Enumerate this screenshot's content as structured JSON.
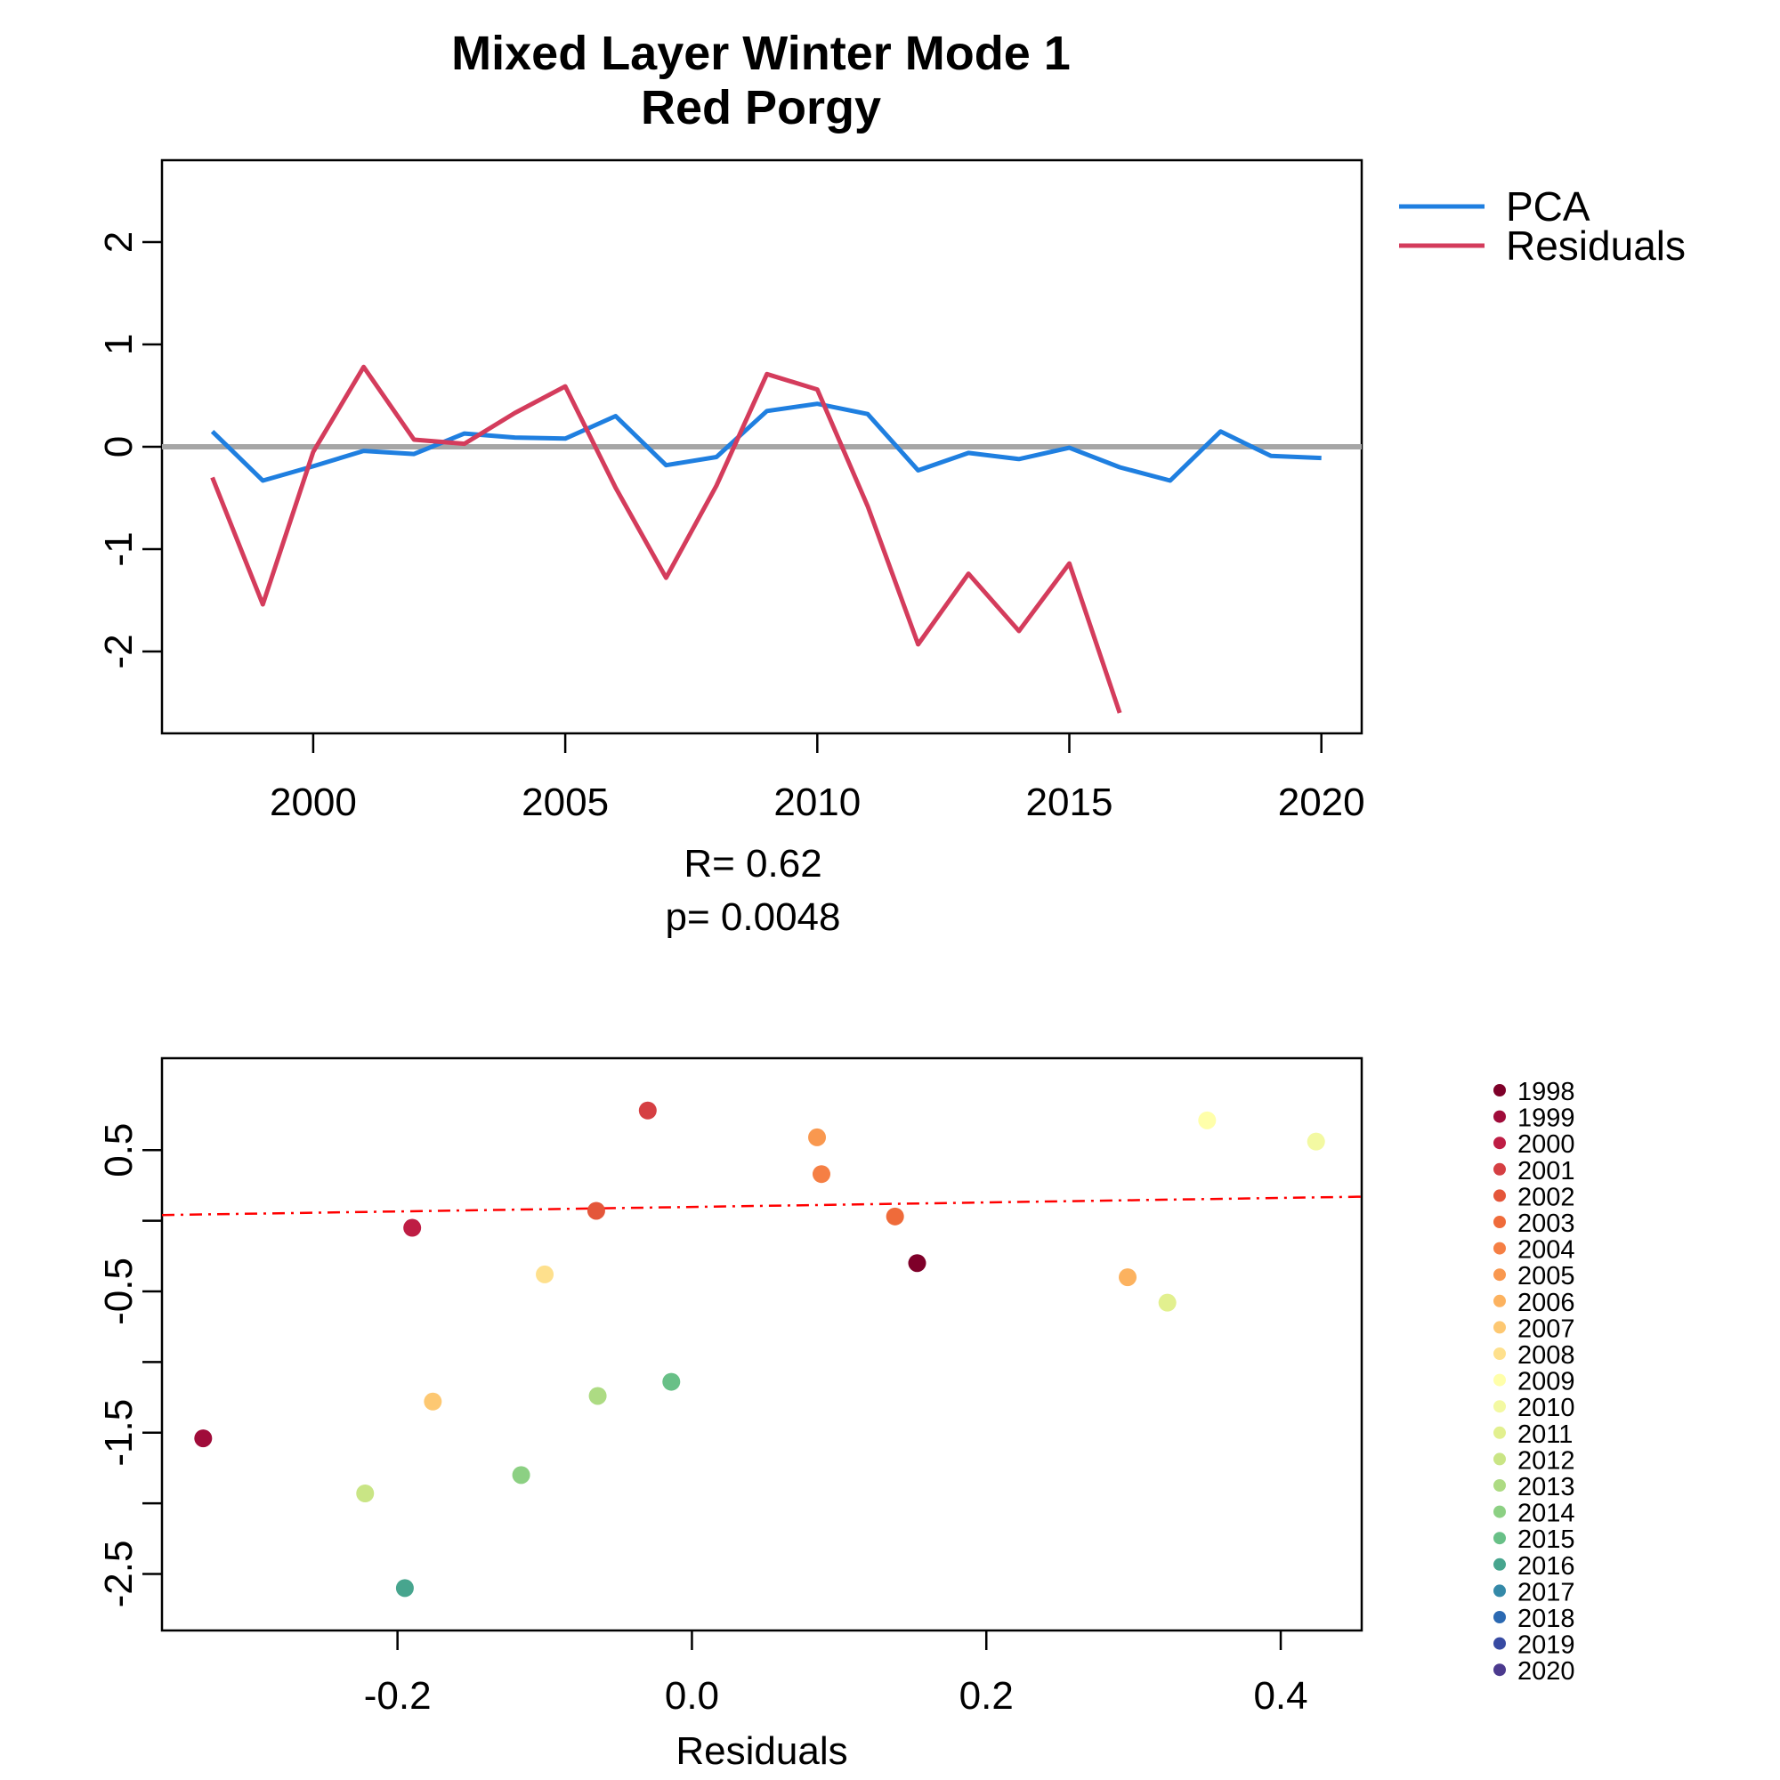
{
  "title_line1": "Mixed Layer Winter Mode 1",
  "title_line2": "Red Porgy",
  "stats": {
    "r_label": "R= 0.62",
    "p_label": "p= 0.0048"
  },
  "colors": {
    "pca": "#1f7fe0",
    "residuals": "#d43c5c",
    "zero_line": "#a6a6a6",
    "fit_line": "#ff0000"
  },
  "chart_data": [
    {
      "type": "line",
      "xlim": [
        1997,
        2020.8
      ],
      "ylim": [
        -2.8,
        2.8
      ],
      "x_ticks": [
        2000,
        2005,
        2010,
        2015,
        2020
      ],
      "x_tick_labels": [
        "2000",
        "2005",
        "2010",
        "2015",
        "2020"
      ],
      "y_ticks": [
        -2,
        -1,
        0,
        1,
        2
      ],
      "y_tick_labels": [
        "-2",
        "-1",
        "0",
        "1",
        "2"
      ],
      "reference_line_y": 0,
      "legend_position": "right-top",
      "series": [
        {
          "name": "PCA",
          "x": [
            1998,
            1999,
            2000,
            2001,
            2002,
            2003,
            2004,
            2005,
            2006,
            2007,
            2008,
            2009,
            2010,
            2011,
            2012,
            2013,
            2014,
            2015,
            2016,
            2017,
            2018,
            2019,
            2020
          ],
          "values": [
            0.15,
            -0.33,
            -0.19,
            -0.04,
            -0.07,
            0.13,
            0.09,
            0.08,
            0.3,
            -0.18,
            -0.1,
            0.35,
            0.42,
            0.32,
            -0.23,
            -0.06,
            -0.12,
            -0.01,
            -0.2,
            -0.33,
            0.15,
            -0.09,
            -0.11
          ]
        },
        {
          "name": "Residuals",
          "x": [
            1998,
            1999,
            2000,
            2001,
            2002,
            2003,
            2004,
            2005,
            2006,
            2007,
            2008,
            2009,
            2010,
            2011,
            2012,
            2013,
            2014,
            2015,
            2016
          ],
          "values": [
            -0.3,
            -1.54,
            -0.05,
            0.78,
            0.07,
            0.03,
            0.33,
            0.59,
            -0.4,
            -1.28,
            -0.38,
            0.71,
            0.56,
            -0.58,
            -1.93,
            -1.24,
            -1.8,
            -1.14,
            -2.6
          ]
        }
      ]
    },
    {
      "type": "scatter",
      "xlabel": "Residuals",
      "xlim": [
        -0.36,
        0.455
      ],
      "ylim": [
        -2.9,
        1.15
      ],
      "x_ticks": [
        -0.2,
        0.0,
        0.2,
        0.4
      ],
      "x_tick_labels": [
        "-0.2",
        "0.0",
        "0.2",
        "0.4"
      ],
      "y_ticks": [
        -2.5,
        -2,
        -1.5,
        -1,
        -0.5,
        0,
        0.5
      ],
      "y_tick_labels": [
        "-2.5",
        "",
        "-1.5",
        "",
        "-0.5",
        "",
        "0.5"
      ],
      "fit_line": {
        "x": [
          -0.36,
          0.455
        ],
        "y": [
          0.04,
          0.17
        ]
      },
      "legend_position": "right",
      "points": [
        {
          "year": "1998",
          "x": 0.153,
          "y": -0.3,
          "color": "#7e0029"
        },
        {
          "year": "1999",
          "x": -0.332,
          "y": -1.54,
          "color": "#a00c3a"
        },
        {
          "year": "2000",
          "x": -0.19,
          "y": -0.05,
          "color": "#be1d44"
        },
        {
          "year": "2001",
          "x": -0.03,
          "y": 0.78,
          "color": "#d53f43"
        },
        {
          "year": "2002",
          "x": -0.065,
          "y": 0.07,
          "color": "#e4563a"
        },
        {
          "year": "2003",
          "x": 0.138,
          "y": 0.03,
          "color": "#ef6b3a"
        },
        {
          "year": "2004",
          "x": 0.088,
          "y": 0.33,
          "color": "#f57f44"
        },
        {
          "year": "2005",
          "x": 0.085,
          "y": 0.59,
          "color": "#f9984f"
        },
        {
          "year": "2006",
          "x": 0.296,
          "y": -0.4,
          "color": "#fcb25f"
        },
        {
          "year": "2007",
          "x": -0.176,
          "y": -1.28,
          "color": "#fdc872"
        },
        {
          "year": "2008",
          "x": -0.1,
          "y": -0.38,
          "color": "#fee08d"
        },
        {
          "year": "2009",
          "x": 0.35,
          "y": 0.71,
          "color": "#ffffaa"
        },
        {
          "year": "2010",
          "x": 0.424,
          "y": 0.56,
          "color": "#f3f9a2"
        },
        {
          "year": "2011",
          "x": 0.323,
          "y": -0.58,
          "color": "#e2f08f"
        },
        {
          "year": "2012",
          "x": -0.222,
          "y": -1.93,
          "color": "#c9e585"
        },
        {
          "year": "2013",
          "x": -0.064,
          "y": -1.24,
          "color": "#addb83"
        },
        {
          "year": "2014",
          "x": -0.116,
          "y": -1.8,
          "color": "#8cd083"
        },
        {
          "year": "2015",
          "x": -0.014,
          "y": -1.14,
          "color": "#68c087"
        },
        {
          "year": "2016",
          "x": -0.195,
          "y": -2.6,
          "color": "#47a58e"
        },
        {
          "year": "2017",
          "x": null,
          "y": null,
          "color": "#3489a8"
        },
        {
          "year": "2018",
          "x": null,
          "y": null,
          "color": "#2b69b2"
        },
        {
          "year": "2019",
          "x": null,
          "y": null,
          "color": "#374aa2"
        },
        {
          "year": "2020",
          "x": null,
          "y": null,
          "color": "#4b3a8e"
        }
      ]
    }
  ]
}
